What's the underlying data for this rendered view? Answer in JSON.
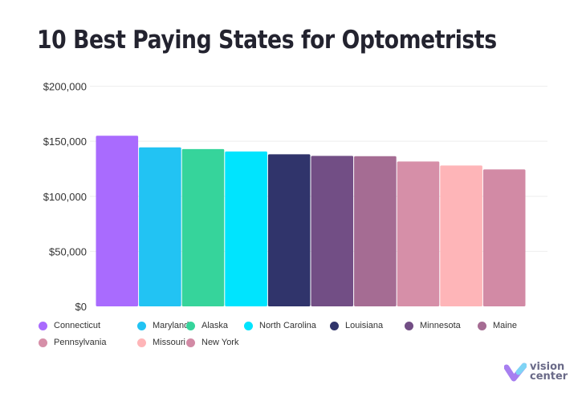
{
  "chart_data": {
    "type": "bar",
    "title": "10 Best Paying States for Optometrists",
    "categories": [
      "Connecticut",
      "Maryland",
      "Alaska",
      "North Carolina",
      "Louisiana",
      "Minnesota",
      "Maine",
      "Pennsylvania",
      "Missouri",
      "New York"
    ],
    "values": [
      155000,
      144400,
      142900,
      140700,
      138200,
      136700,
      136400,
      131600,
      128000,
      124400
    ],
    "colors": [
      "#a96bfe",
      "#22c3f3",
      "#36d49b",
      "#00e4fe",
      "#30346b",
      "#724e85",
      "#a56c93",
      "#d68fa8",
      "#feb5b8",
      "#d28aa5"
    ],
    "ylim": [
      0,
      200000
    ],
    "yticks": [
      "$0",
      "$50,000",
      "$100,000",
      "$150,000",
      "$200,000"
    ],
    "grid": true,
    "legend": "bottom"
  },
  "brand": {
    "line1": "vision",
    "line2": "center"
  }
}
